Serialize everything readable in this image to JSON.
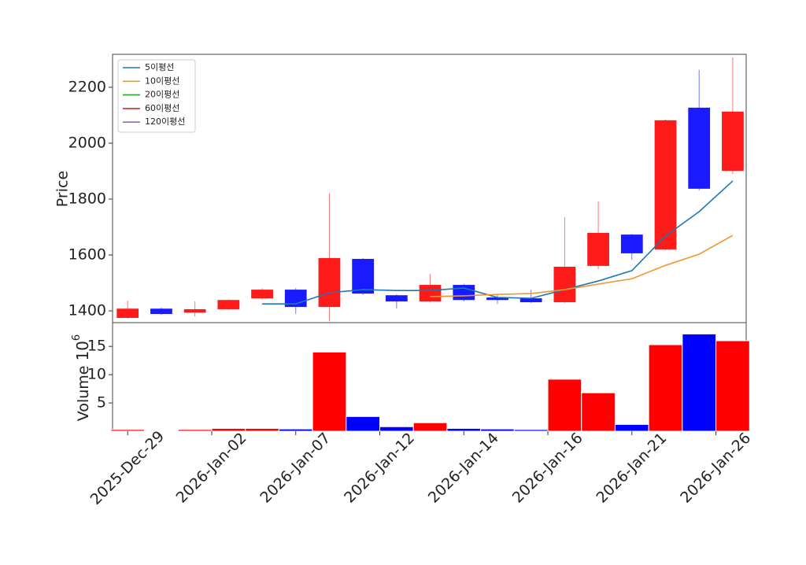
{
  "chart_data": [
    {
      "type": "candlestick",
      "ylabel": "Price",
      "open": [
        1375,
        1408,
        1394,
        1406,
        1445,
        1476,
        1414,
        1586,
        1456,
        1434,
        1493,
        1448,
        1445,
        1431,
        1561,
        1673,
        1620,
        2127,
        1901
      ],
      "high": [
        1437,
        1412,
        1434,
        1441,
        1481,
        1482,
        1820,
        1589,
        1459,
        1532,
        1497,
        1459,
        1476,
        1735,
        1792,
        1676,
        2085,
        2262,
        2307
      ],
      "low": [
        1373,
        1386,
        1380,
        1404,
        1440,
        1389,
        1363,
        1458,
        1408,
        1430,
        1434,
        1425,
        1428,
        1428,
        1549,
        1583,
        1617,
        1831,
        1890
      ],
      "close": [
        1408,
        1389,
        1406,
        1439,
        1476,
        1414,
        1589,
        1462,
        1434,
        1493,
        1439,
        1439,
        1431,
        1558,
        1679,
        1606,
        2082,
        1837,
        2113
      ],
      "up_color": "#ff1a1a",
      "down_color": "#1a1aff",
      "series": [
        {
          "name": "5이평선",
          "color": "#1f77b4",
          "values": [
            null,
            null,
            null,
            null,
            1425,
            1425,
            1465,
            1476,
            1473,
            1473,
            1482,
            1448,
            1445,
            1476,
            1507,
            1544,
            1668,
            1755,
            1865
          ]
        },
        {
          "name": "10이평선",
          "color": "#f0962e",
          "values": [
            null,
            null,
            null,
            null,
            null,
            null,
            null,
            null,
            null,
            1451,
            1454,
            1459,
            1462,
            1476,
            1496,
            1515,
            1563,
            1603,
            1670
          ]
        },
        {
          "name": "20이평선",
          "color": "#2ca02c",
          "values": [
            null,
            null,
            null,
            null,
            null,
            null,
            null,
            null,
            null,
            null,
            null,
            null,
            null,
            null,
            null,
            null,
            null,
            null,
            null
          ]
        },
        {
          "name": "60이평선",
          "color": "#d62728",
          "values": [
            null,
            null,
            null,
            null,
            null,
            null,
            null,
            null,
            null,
            null,
            null,
            null,
            null,
            null,
            null,
            null,
            null,
            null,
            null
          ]
        },
        {
          "name": "120이평선",
          "color": "#9467bd",
          "values": [
            null,
            null,
            null,
            null,
            null,
            null,
            null,
            null,
            null,
            null,
            null,
            null,
            null,
            null,
            null,
            null,
            null,
            null,
            null
          ]
        }
      ],
      "legend": "upper left",
      "xlim": [
        -0.45,
        18.4
      ],
      "ylim": [
        1358,
        2318
      ],
      "yticks": [
        1400,
        1600,
        1800,
        2000,
        2200
      ]
    },
    {
      "type": "bar",
      "ylabel": "Volume",
      "offset_base": "10",
      "offset_exponent": "6",
      "values": [
        0.3,
        0.1,
        0.3,
        0.5,
        0.5,
        0.4,
        14.0,
        2.6,
        0.8,
        1.5,
        0.5,
        0.4,
        0.3,
        9.2,
        6.8,
        1.2,
        15.3,
        17.2,
        16.0
      ],
      "colors": [
        "#ff0000",
        "#0000ff",
        "#ff0000",
        "#ff0000",
        "#ff0000",
        "#0000ff",
        "#ff0000",
        "#0000ff",
        "#0000ff",
        "#ff0000",
        "#0000ff",
        "#0000ff",
        "#0000ff",
        "#ff0000",
        "#ff0000",
        "#0000ff",
        "#ff0000",
        "#0000ff",
        "#ff0000"
      ],
      "xlim": [
        -0.45,
        18.4
      ],
      "ylim": [
        0,
        19.2
      ],
      "yticks": [
        5,
        10,
        15
      ],
      "xticks": [
        {
          "value": 0,
          "label": "2025-Dec-29"
        },
        {
          "value": 2.5,
          "label": "2026-Jan-02"
        },
        {
          "value": 5,
          "label": "2026-Jan-07"
        },
        {
          "value": 7.5,
          "label": "2026-Jan-12"
        },
        {
          "value": 10,
          "label": "2026-Jan-14"
        },
        {
          "value": 12.5,
          "label": "2026-Jan-16"
        },
        {
          "value": 15,
          "label": "2026-Jan-21"
        },
        {
          "value": 17.5,
          "label": "2026-Jan-26"
        }
      ]
    }
  ]
}
